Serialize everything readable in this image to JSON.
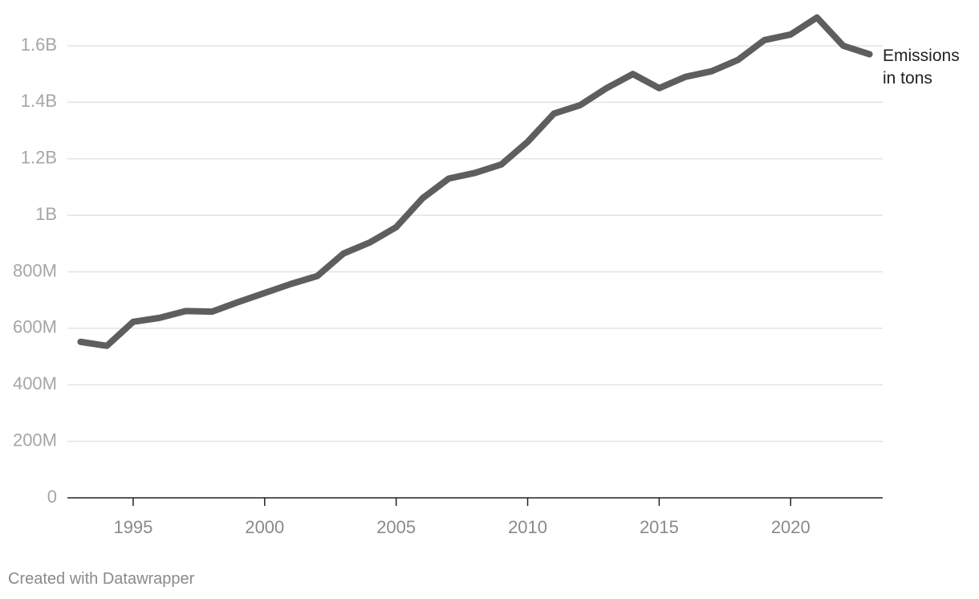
{
  "footer": {
    "credit": "Created with Datawrapper"
  },
  "colors": {
    "line": "#5e5e5e",
    "grid": "#e3e3e3",
    "axis": "#222222",
    "tick_text": "#a6a6a6"
  },
  "chart_data": {
    "type": "line",
    "title": "",
    "xlabel": "",
    "ylabel": "",
    "x": [
      1993,
      1994,
      1995,
      1996,
      1997,
      1998,
      1999,
      2000,
      2001,
      2002,
      2003,
      2004,
      2005,
      2006,
      2007,
      2008,
      2009,
      2010,
      2011,
      2012,
      2013,
      2014,
      2015,
      2016,
      2017,
      2018,
      2019,
      2020,
      2021,
      2022,
      2023
    ],
    "series": [
      {
        "name": "Emissions in tons",
        "label_lines": [
          "Emissions",
          "in tons"
        ],
        "values": [
          552000000,
          538000000,
          623000000,
          637000000,
          661000000,
          659000000,
          693000000,
          725000000,
          757000000,
          785000000,
          865000000,
          904000000,
          958000000,
          1060000000,
          1130000000,
          1150000000,
          1180000000,
          1260000000,
          1360000000,
          1390000000,
          1450000000,
          1500000000,
          1450000000,
          1490000000,
          1510000000,
          1550000000,
          1620000000,
          1640000000,
          1700000000,
          1600000000,
          1570000000
        ]
      }
    ],
    "ylim": [
      0,
      1600000000
    ],
    "yticks": [
      0,
      200000000,
      400000000,
      600000000,
      800000000,
      1000000000,
      1200000000,
      1400000000,
      1600000000
    ],
    "ytick_labels": [
      "0",
      "200M",
      "400M",
      "600M",
      "800M",
      "1B",
      "1.2B",
      "1.4B",
      "1.6B"
    ],
    "xlim": [
      1992.5,
      2023.5
    ],
    "xticks": [
      1995,
      2000,
      2005,
      2010,
      2015,
      2020
    ],
    "xtick_labels": [
      "1995",
      "2000",
      "2005",
      "2010",
      "2015",
      "2020"
    ],
    "grid": true,
    "legend": "direct label at line end"
  }
}
